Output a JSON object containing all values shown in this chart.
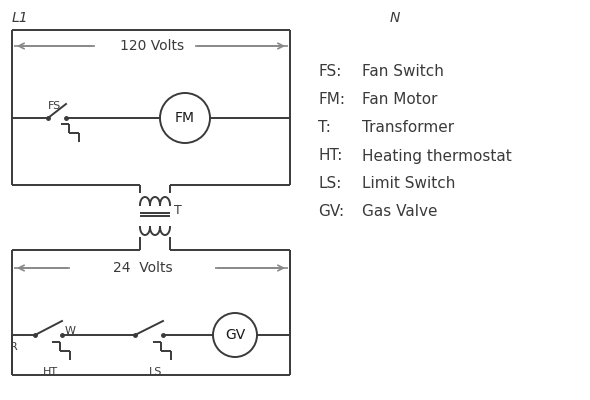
{
  "bg_color": "#ffffff",
  "line_color": "#3a3a3a",
  "arrow_color": "#888888",
  "label_color": "#1a1a1a",
  "legend": [
    [
      "FS:",
      "Fan Switch"
    ],
    [
      "FM:",
      "Fan Motor"
    ],
    [
      "T:",
      "Transformer"
    ],
    [
      "HT:",
      "Heating thermostat"
    ],
    [
      "LS:",
      "Limit Switch"
    ],
    [
      "GV:",
      "Gas Valve"
    ]
  ],
  "L1_label": "L1",
  "N_label": "N",
  "v120_label": "120 Volts",
  "v24_label": "24  Volts",
  "T_label": "T",
  "R_label": "R",
  "W_label": "W",
  "HT_label": "HT",
  "LS_label": "LS",
  "FS_label": "FS"
}
